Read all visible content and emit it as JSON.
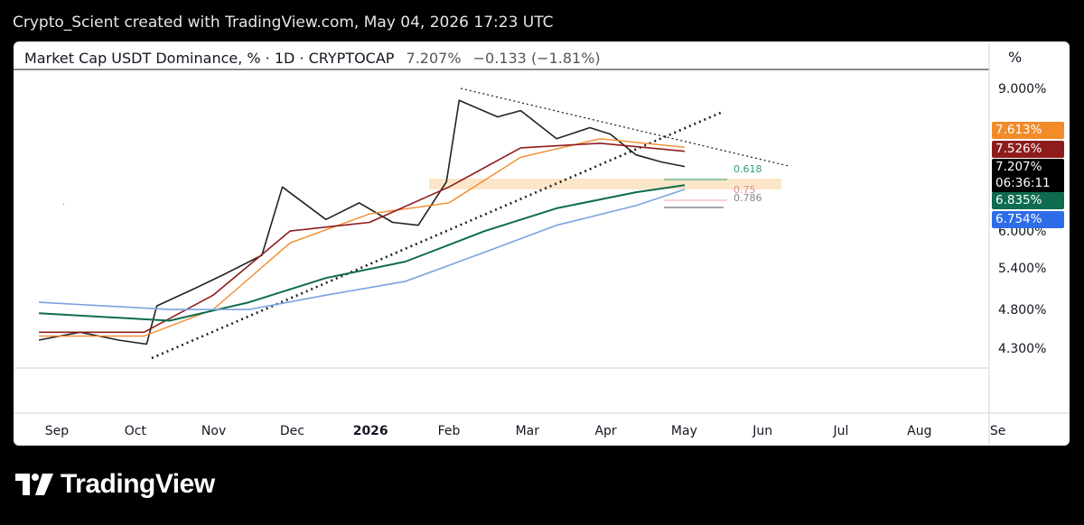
{
  "header": {
    "text": "Crypto_Scient created with TradingView.com, May 04, 2026 17:23 UTC"
  },
  "symbol": {
    "name": "Market Cap USDT Dominance, % · 1D · CRYPTOCAP",
    "last": "7.207%",
    "change": "−0.133 (−1.81%)"
  },
  "axis": {
    "unit": "%"
  },
  "price_labels": {
    "ema_orange": {
      "text": "7.613%",
      "color": "#f28b2a"
    },
    "ema_red": {
      "text": "7.526%",
      "color": "#8e1c1c"
    },
    "last": {
      "text": "7.207%",
      "countdown": "06:36:11",
      "color": "#000000"
    },
    "ema_green": {
      "text": "6.835%",
      "color": "#0f6b4f"
    },
    "ema_blue": {
      "text": "6.754%",
      "color": "#2d6ee8"
    }
  },
  "fib_labels": {
    "f618": "0.618",
    "f75": "0.75",
    "f786": "0.786"
  },
  "brand": {
    "name": "TradingView",
    "logo": "tradingview-logo-icon"
  },
  "chart_data": {
    "type": "line",
    "title": "Market Cap USDT Dominance, % · 1D · CRYPTOCAP",
    "y_scale": "log",
    "y_ticks": [
      "9.000%",
      "6.000%",
      "5.400%",
      "4.800%",
      "4.300%"
    ],
    "x_ticks": [
      "Sep",
      "Oct",
      "Nov",
      "Dec",
      "2026",
      "Feb",
      "Mar",
      "Apr",
      "May",
      "Jun",
      "Jul",
      "Aug",
      "Se"
    ],
    "series": [
      {
        "color": "#222222",
        "x": [
          "2025-08-25",
          "2025-09-10",
          "2025-09-25",
          "2025-10-06",
          "2025-10-10",
          "2025-10-25",
          "2025-11-05",
          "2025-11-20",
          "2025-11-28",
          "2025-12-15",
          "2025-12-28",
          "2026-01-10",
          "2026-01-20",
          "2026-01-31",
          "2026-02-05",
          "2026-02-20",
          "2026-03-01",
          "2026-03-15",
          "2026-03-28",
          "2026-04-05",
          "2026-04-15",
          "2026-04-25",
          "2026-05-04"
        ],
        "values": [
          4.4,
          4.5,
          4.4,
          4.35,
          4.85,
          5.1,
          5.3,
          5.6,
          6.8,
          6.2,
          6.5,
          6.15,
          6.1,
          6.9,
          8.7,
          8.3,
          8.45,
          7.8,
          8.05,
          7.9,
          7.45,
          7.3,
          7.207
        ]
      },
      {
        "color": "#f28b2a",
        "x": [
          "2025-08-25",
          "2025-10-05",
          "2025-11-01",
          "2025-12-01",
          "2026-01-01",
          "2026-02-01",
          "2026-03-01",
          "2026-04-01",
          "2026-05-04"
        ],
        "values": [
          4.45,
          4.45,
          4.8,
          5.8,
          6.3,
          6.5,
          7.4,
          7.8,
          7.613
        ]
      },
      {
        "color": "#8e1c1c",
        "x": [
          "2025-08-25",
          "2025-10-05",
          "2025-11-01",
          "2025-12-01",
          "2026-01-01",
          "2026-02-01",
          "2026-03-01",
          "2026-04-01",
          "2026-05-04"
        ],
        "values": [
          4.5,
          4.5,
          5.0,
          6.0,
          6.15,
          6.8,
          7.6,
          7.7,
          7.526
        ]
      },
      {
        "color": "#0f6b4f",
        "x": [
          "2025-08-25",
          "2025-10-15",
          "2025-11-15",
          "2025-12-15",
          "2026-01-15",
          "2026-02-15",
          "2026-03-15",
          "2026-04-15",
          "2026-05-04"
        ],
        "values": [
          4.75,
          4.65,
          4.9,
          5.25,
          5.5,
          6.0,
          6.4,
          6.7,
          6.835
        ]
      },
      {
        "color": "#7aa3e0",
        "x": [
          "2025-08-25",
          "2025-10-15",
          "2025-11-15",
          "2025-12-15",
          "2026-01-15",
          "2026-02-15",
          "2026-03-15",
          "2026-04-15",
          "2026-05-04"
        ],
        "values": [
          4.9,
          4.8,
          4.8,
          5.0,
          5.2,
          5.65,
          6.1,
          6.45,
          6.754
        ]
      }
    ]
  }
}
